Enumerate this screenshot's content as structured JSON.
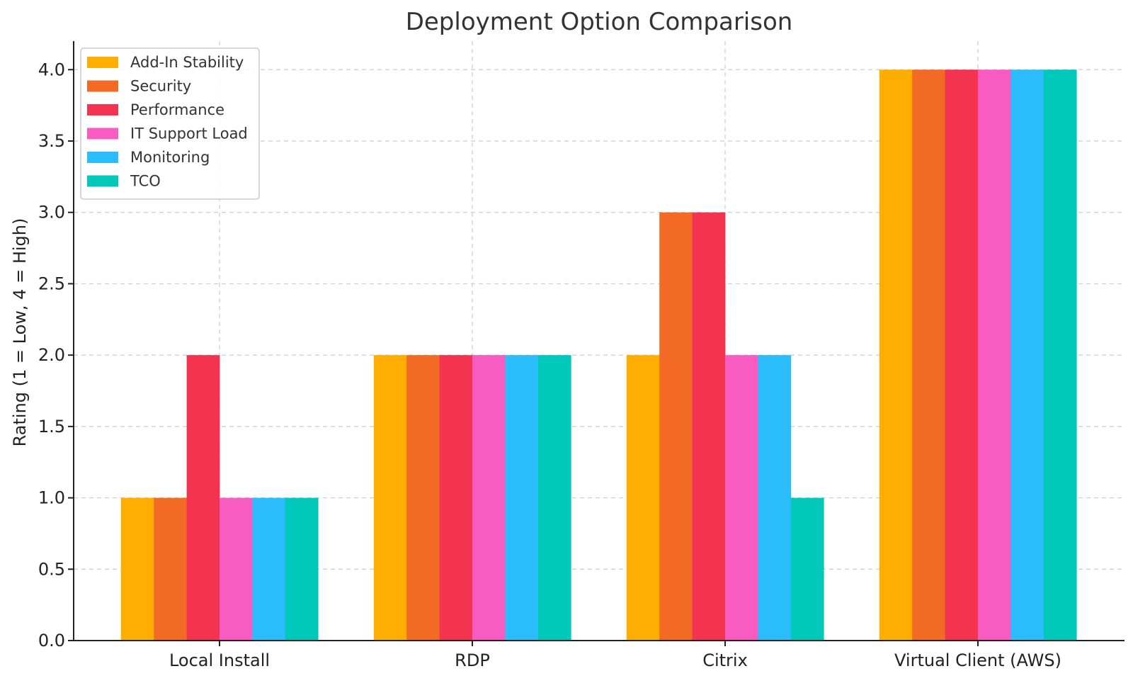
{
  "chart_data": {
    "type": "bar",
    "title": "Deployment Option Comparison",
    "xlabel": "",
    "ylabel": "Rating (1 = Low, 4 = High)",
    "categories": [
      "Local Install",
      "RDP",
      "Citrix",
      "Virtual Client (AWS)"
    ],
    "ylim": [
      0,
      4.2
    ],
    "yticks": [
      "0.0",
      "0.5",
      "1.0",
      "1.5",
      "2.0",
      "2.5",
      "3.0",
      "3.5",
      "4.0"
    ],
    "grid": true,
    "legend_position": "top-left",
    "series": [
      {
        "name": "Add-In Stability",
        "color": "#FFAE00",
        "values": [
          1,
          2,
          2,
          4
        ]
      },
      {
        "name": "Security",
        "color": "#F26A24",
        "values": [
          1,
          2,
          3,
          4
        ]
      },
      {
        "name": "Performance",
        "color": "#F43351",
        "values": [
          2,
          2,
          3,
          4
        ]
      },
      {
        "name": "IT Support Load",
        "color": "#F95CC0",
        "values": [
          1,
          2,
          2,
          4
        ]
      },
      {
        "name": "Monitoring",
        "color": "#2BBCFB",
        "values": [
          1,
          2,
          2,
          4
        ]
      },
      {
        "name": "TCO",
        "color": "#00C9BB",
        "values": [
          1,
          2,
          1,
          4
        ]
      }
    ]
  }
}
